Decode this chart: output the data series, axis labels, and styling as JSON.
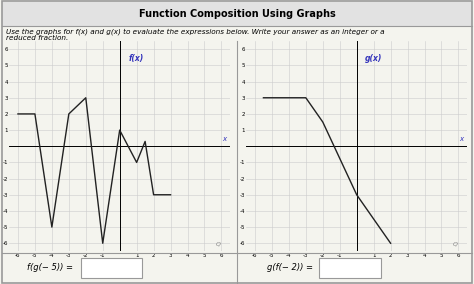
{
  "title": "Function Composition Using Graphs",
  "instruction_line1": "Use the graphs for f(x) and g(x) to evaluate the expressions below. Write your answer as an integer or a",
  "instruction_line2": "reduced fraction.",
  "fx_label": "f(x)",
  "gx_label": "g(x)",
  "x_label": "x",
  "fx_points": [
    [
      -6,
      2
    ],
    [
      -5,
      2
    ],
    [
      -4,
      -5
    ],
    [
      -3,
      2
    ],
    [
      -2,
      3
    ],
    [
      -1,
      -6
    ],
    [
      0,
      1
    ],
    [
      1,
      -1
    ],
    [
      1.5,
      0.3
    ],
    [
      2,
      -3
    ],
    [
      3,
      -3
    ]
  ],
  "gx_points": [
    [
      -5.5,
      3
    ],
    [
      -3,
      3
    ],
    [
      -2,
      1.5
    ],
    [
      0,
      -3
    ],
    [
      1,
      -4.5
    ],
    [
      2,
      -6
    ]
  ],
  "bg_color": "#f4f4ee",
  "grid_color": "#cccccc",
  "line_color": "#222222",
  "label_color": "#3333bb",
  "bottom_label1": "f(g(− 5)) =",
  "bottom_label2": "g(f(− 2)) =",
  "title_bg": "#e2e2e2",
  "border_color": "#999999"
}
